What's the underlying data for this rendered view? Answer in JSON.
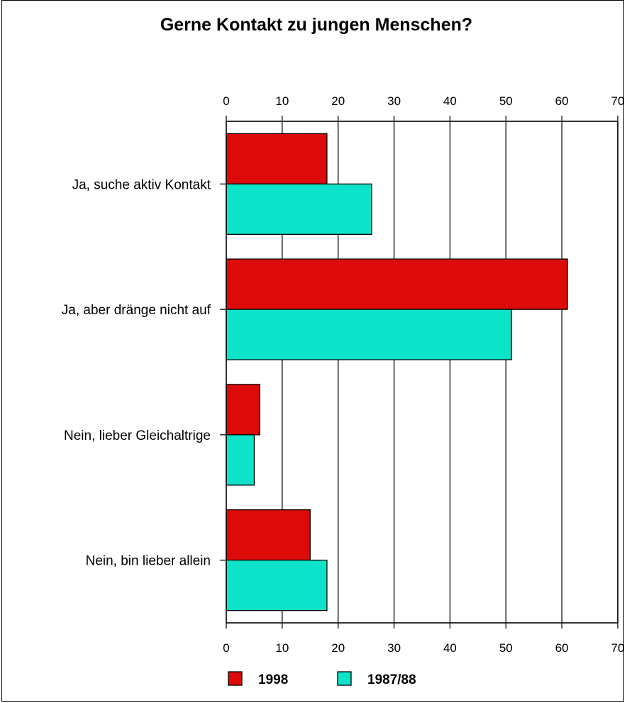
{
  "chart_data": {
    "type": "bar",
    "orientation": "horizontal",
    "title": "Gerne Kontakt zu jungen Menschen?",
    "categories": [
      "Ja, suche aktiv Kontakt",
      "Ja, aber dränge nicht auf",
      "Nein, lieber Gleichaltrige",
      "Nein, bin lieber allein"
    ],
    "series": [
      {
        "name": "1998",
        "color": "#dd0a0a",
        "values": [
          18,
          61,
          6,
          15
        ]
      },
      {
        "name": "1987/88",
        "color": "#0de3c8",
        "values": [
          26,
          51,
          5,
          18
        ]
      }
    ],
    "xlim": [
      0,
      70
    ],
    "xticks": [
      0,
      10,
      20,
      30,
      40,
      50,
      60,
      70
    ],
    "tick_labels_top": true,
    "tick_labels_bottom": true,
    "grid": "vertical",
    "legend_position": "bottom"
  }
}
